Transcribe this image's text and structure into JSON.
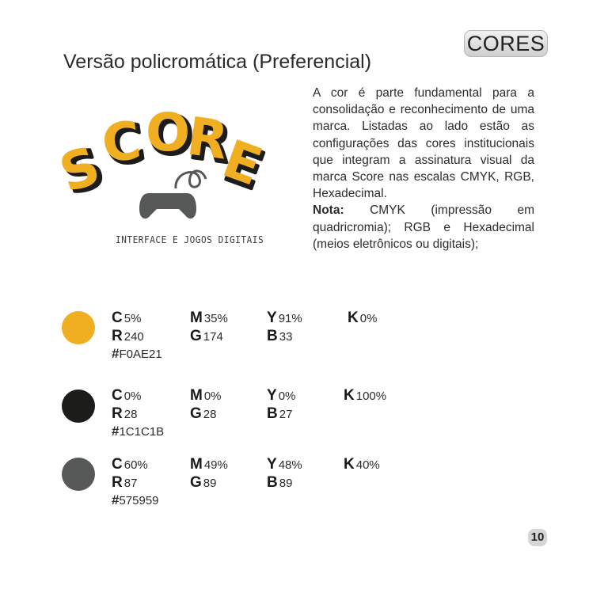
{
  "header": {
    "badge": "CORES",
    "title": "Versão policromática (Preferencial)"
  },
  "logo": {
    "wordmark": "SCORE",
    "tagline": "INTERFACE E JOGOS DIGITAIS",
    "icon": "gamepad-icon"
  },
  "description": {
    "body": "A cor é parte fundamental para a consolidação e reconhecimento de uma marca. Listadas ao lado estão as configurações das cores institucionais que integram a assinatura visual da marca Score nas escalas CMYK, RGB, Hexadecimal.",
    "note_label": "Nota:",
    "note_text": " CMYK (impressão em quadricromia); RGB e Hexadecimal (meios eletrônicos ou digitais);"
  },
  "colors": [
    {
      "swatch": "#F0AE21",
      "c": "5%",
      "m": "35%",
      "y": "91%",
      "k": "0%",
      "r": "240",
      "g": "174",
      "b": "33",
      "hex": "F0AE21"
    },
    {
      "swatch": "#1C1C1B",
      "c": "0%",
      "m": "0%",
      "y": "0%",
      "k": "100%",
      "r": "28",
      "g": "28",
      "b": "27",
      "hex": "1C1C1B"
    },
    {
      "swatch": "#575959",
      "c": "60%",
      "m": "49%",
      "y": "48%",
      "k": "40%",
      "r": "87",
      "g": "89",
      "b": "89",
      "hex": "575959"
    }
  ],
  "labels": {
    "c": "C",
    "m": "M",
    "y": "Y",
    "k": "K",
    "r": "R",
    "g": "G",
    "b": "B",
    "hash": "#"
  },
  "page_number": "10"
}
